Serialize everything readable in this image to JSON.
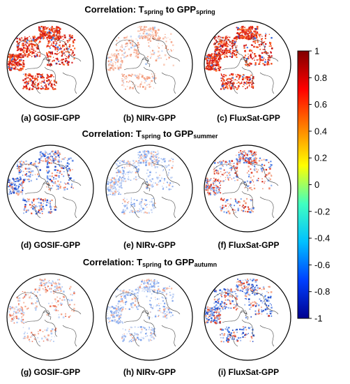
{
  "rows": [
    {
      "title_prefix": "Correlation: T",
      "title_t_sub": "spring",
      "title_mid": " to GPP",
      "title_gpp_sub": "spring",
      "panels": [
        {
          "caption": "(a) GOSIF-GPP",
          "pattern": "strong-positive"
        },
        {
          "caption": "(b) NIRv-GPP",
          "pattern": "weak-positive"
        },
        {
          "caption": "(c) FluxSat-GPP",
          "pattern": "strong-positive"
        }
      ]
    },
    {
      "title_prefix": "Correlation: T",
      "title_t_sub": "spring",
      "title_mid": " to GPP",
      "title_gpp_sub": "summer",
      "panels": [
        {
          "caption": "(d) GOSIF-GPP",
          "pattern": "mixed-negative"
        },
        {
          "caption": "(e) NIRv-GPP",
          "pattern": "weak-negative"
        },
        {
          "caption": "(f) FluxSat-GPP",
          "pattern": "mixed"
        }
      ]
    },
    {
      "title_prefix": "Correlation: T",
      "title_t_sub": "spring",
      "title_mid": " to GPP",
      "title_gpp_sub": "autumn",
      "panels": [
        {
          "caption": "(g) GOSIF-GPP",
          "pattern": "weak-mixed"
        },
        {
          "caption": "(h) NIRv-GPP",
          "pattern": "weak-negative"
        },
        {
          "caption": "(i) FluxSat-GPP",
          "pattern": "mixed-negative"
        }
      ]
    }
  ],
  "colorbar": {
    "min": -1,
    "max": 1,
    "tick_labels": [
      "1",
      "0.8",
      "0.6",
      "0.4",
      "0.2",
      "0",
      "-0.2",
      "-0.4",
      "-0.6",
      "-0.8",
      "-1"
    ],
    "colors": [
      "#800000",
      "#ff0000",
      "#ff8000",
      "#ffff00",
      "#40ffc0",
      "#00c0ff",
      "#0040ff",
      "#00008f"
    ]
  }
}
